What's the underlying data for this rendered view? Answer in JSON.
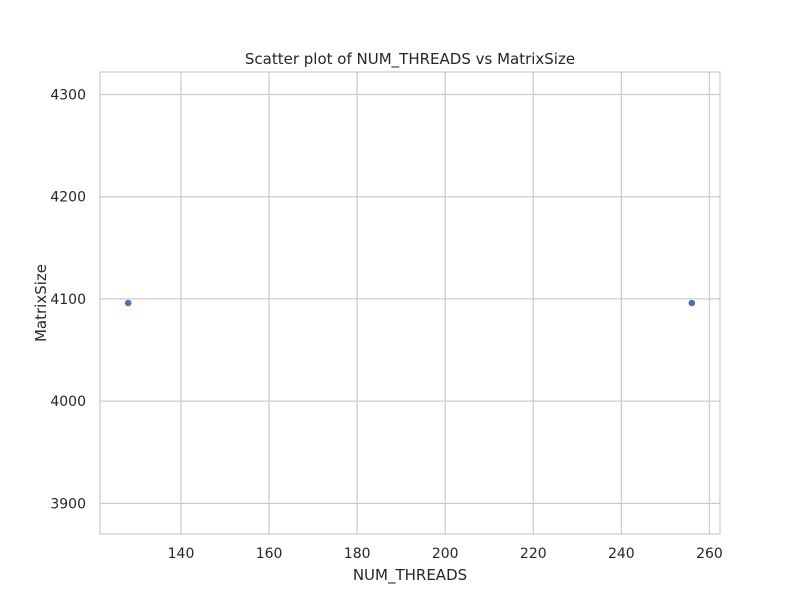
{
  "chart_data": {
    "type": "scatter",
    "title": "Scatter plot of NUM_THREADS vs MatrixSize",
    "xlabel": "NUM_THREADS",
    "ylabel": "MatrixSize",
    "xlim": [
      121.6,
      262.4
    ],
    "ylim": [
      3870,
      4322
    ],
    "xticks": [
      140,
      160,
      180,
      200,
      220,
      240,
      260
    ],
    "yticks": [
      3900,
      4000,
      4100,
      4200,
      4300
    ],
    "grid": true,
    "colors": {
      "point": "#4c72b0",
      "grid": "#cccccc",
      "spine": "#cccccc",
      "background": "#ffffff"
    },
    "series": [
      {
        "x": [
          128,
          256
        ],
        "y": [
          4096,
          4096
        ]
      }
    ]
  }
}
